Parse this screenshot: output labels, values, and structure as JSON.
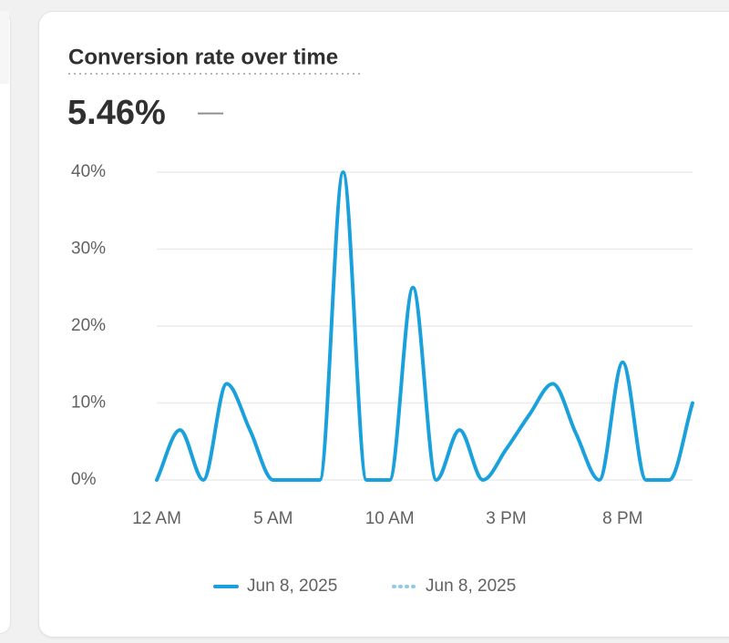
{
  "chart_data": {
    "type": "line",
    "title": "Conversion rate over time",
    "summary_value": "5.46%",
    "comparison": "—",
    "x": [
      0,
      1,
      2,
      3,
      4,
      5,
      6,
      7,
      8,
      9,
      10,
      11,
      12,
      13,
      14,
      15,
      16,
      17,
      18,
      19,
      20,
      21,
      22,
      23
    ],
    "xlim": [
      0,
      23
    ],
    "xticks": [
      {
        "value": 0,
        "label": "12 AM"
      },
      {
        "value": 5,
        "label": "5 AM"
      },
      {
        "value": 10,
        "label": "10 AM"
      },
      {
        "value": 15,
        "label": "3 PM"
      },
      {
        "value": 20,
        "label": "8 PM"
      }
    ],
    "ylim": [
      0,
      40
    ],
    "yticks": [
      {
        "value": 0,
        "label": "0%"
      },
      {
        "value": 10,
        "label": "10%"
      },
      {
        "value": 20,
        "label": "20%"
      },
      {
        "value": 30,
        "label": "30%"
      },
      {
        "value": 40,
        "label": "40%"
      }
    ],
    "grid": true,
    "series": [
      {
        "name": "Jun 8, 2025",
        "color": "#1aa1dc",
        "style": "solid",
        "values": [
          0,
          6.5,
          0,
          12.5,
          6.5,
          0,
          0,
          0,
          40,
          0,
          0,
          25,
          0,
          6.5,
          0,
          4,
          8.5,
          12.5,
          6,
          0,
          15.3,
          0,
          0,
          10
        ]
      },
      {
        "name": "Jun 8, 2025",
        "color": "#8fcbe8",
        "style": "dotted",
        "values": [
          null,
          null,
          null,
          null,
          null,
          null,
          null,
          null,
          null,
          null,
          null,
          null,
          null,
          null,
          null,
          null,
          null,
          null,
          null,
          null,
          null,
          null,
          null,
          null
        ]
      }
    ]
  }
}
